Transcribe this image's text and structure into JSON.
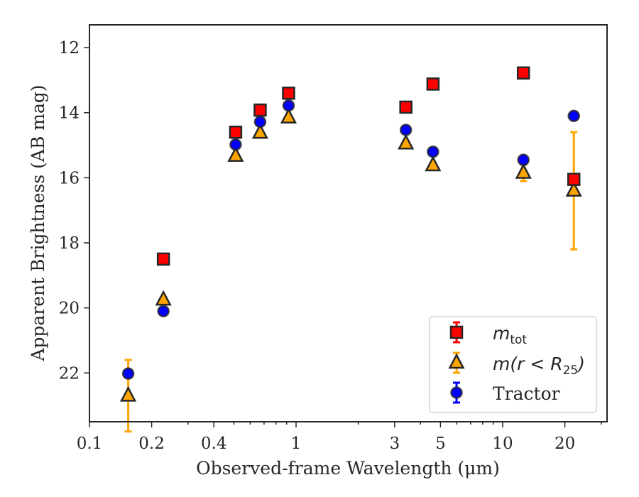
{
  "chart_data": {
    "type": "scatter",
    "title": "",
    "xlabel": "Observed-frame Wavelength (μm)",
    "ylabel": "Apparent Brightness (AB mag)",
    "xscale": "log",
    "xlim": [
      0.1,
      32
    ],
    "ylim": [
      23.5,
      11.3
    ],
    "y_inverted": true,
    "grid": false,
    "legend_position": "lower-right",
    "xticks": [
      {
        "value": 0.1,
        "label": "0.1"
      },
      {
        "value": 0.2,
        "label": "0.2"
      },
      {
        "value": 0.4,
        "label": "0.4"
      },
      {
        "value": 1,
        "label": "1"
      },
      {
        "value": 3,
        "label": "3"
      },
      {
        "value": 5,
        "label": "5"
      },
      {
        "value": 10,
        "label": "10"
      },
      {
        "value": 20,
        "label": "20"
      }
    ],
    "yticks": [
      {
        "value": 12,
        "label": "12"
      },
      {
        "value": 14,
        "label": "14"
      },
      {
        "value": 16,
        "label": "16"
      },
      {
        "value": 18,
        "label": "18"
      },
      {
        "value": 20,
        "label": "20"
      },
      {
        "value": 22,
        "label": "22"
      }
    ],
    "series": [
      {
        "name": "m_tot",
        "legend_parts": [
          "m",
          "tot"
        ],
        "marker": "square",
        "color": "#ff0000",
        "errorbar_color": "#ff0000",
        "x": [
          0.228,
          0.51,
          0.67,
          0.92,
          3.4,
          4.6,
          12.6,
          22.1
        ],
        "y": [
          18.5,
          14.6,
          13.92,
          13.4,
          13.83,
          13.12,
          12.78,
          16.05
        ],
        "yerr": [
          0.05,
          0.05,
          0.05,
          0.05,
          0.05,
          0.05,
          0.05,
          0.05
        ]
      },
      {
        "name": "m(r < R25)",
        "legend_parts": [
          "m(",
          "r",
          " < ",
          "R",
          "25",
          ")"
        ],
        "marker": "triangle",
        "color": "#ffa500",
        "errorbar_color": "#ffa500",
        "x": [
          0.154,
          0.228,
          0.51,
          0.67,
          0.92,
          3.4,
          4.6,
          12.6,
          22.1
        ],
        "y": [
          22.7,
          19.75,
          15.33,
          14.62,
          14.15,
          14.95,
          15.62,
          15.85,
          16.4
        ],
        "yerr": [
          1.1,
          0.05,
          0.05,
          0.05,
          0.05,
          0.05,
          0.05,
          0.25,
          1.8
        ]
      },
      {
        "name": "Tractor",
        "marker": "circle",
        "color": "#0000ff",
        "errorbar_color": "#0000ff",
        "x": [
          0.154,
          0.228,
          0.51,
          0.67,
          0.92,
          3.4,
          4.6,
          12.6,
          22.1
        ],
        "y": [
          22.02,
          20.1,
          14.98,
          14.28,
          13.78,
          14.53,
          15.2,
          15.45,
          14.1
        ],
        "yerr": [
          0.1,
          0.05,
          0.05,
          0.05,
          0.05,
          0.05,
          0.05,
          0.05,
          0.05
        ]
      }
    ]
  }
}
